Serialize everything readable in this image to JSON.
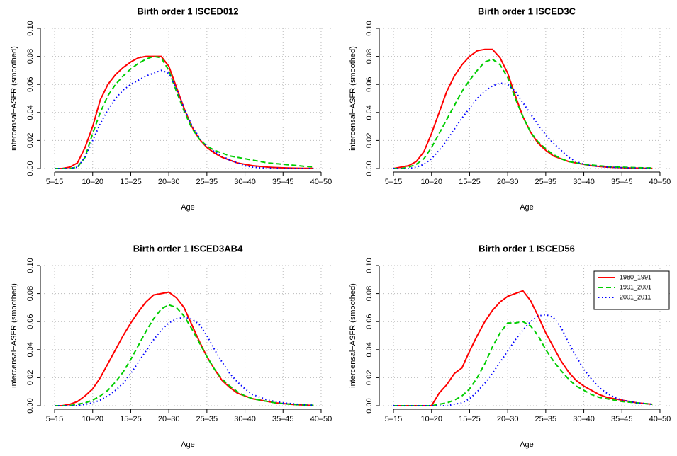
{
  "chart_data": [
    {
      "type": "line",
      "title": "Birth order 1 ISCED012",
      "x_label": "Age",
      "y_label": "intercensal−ASFR (smoothed)",
      "x": [
        1,
        2,
        3,
        4,
        5,
        6,
        7,
        8,
        9,
        10,
        11,
        12,
        13,
        14,
        15,
        16,
        17,
        18,
        19,
        20,
        21,
        22,
        23,
        24,
        25,
        26,
        27,
        28,
        29,
        30,
        31,
        32,
        33,
        34,
        35
      ],
      "series": [
        {
          "color": "#ff0000",
          "dash": "solid",
          "values": [
            0,
            0,
            0.001,
            0.004,
            0.015,
            0.03,
            0.049,
            0.06,
            0.067,
            0.072,
            0.076,
            0.079,
            0.08,
            0.08,
            0.08,
            0.073,
            0.058,
            0.043,
            0.03,
            0.021,
            0.015,
            0.011,
            0.008,
            0.006,
            0.004,
            0.003,
            0.002,
            0.0015,
            0.001,
            0.0007,
            0.0005,
            0.0003,
            0.0002,
            0.0001,
            0.0001
          ]
        },
        {
          "color": "#00cd00",
          "dash": "dashed",
          "values": [
            0,
            0,
            0,
            0.001,
            0.008,
            0.025,
            0.04,
            0.052,
            0.06,
            0.066,
            0.071,
            0.075,
            0.078,
            0.08,
            0.079,
            0.07,
            0.055,
            0.041,
            0.029,
            0.021,
            0.016,
            0.013,
            0.011,
            0.009,
            0.008,
            0.007,
            0.006,
            0.005,
            0.004,
            0.0035,
            0.003,
            0.0025,
            0.002,
            0.0015,
            0.0012
          ]
        },
        {
          "color": "#0000ff",
          "dash": "dotted",
          "values": [
            0,
            0,
            0,
            0.001,
            0.008,
            0.02,
            0.032,
            0.042,
            0.05,
            0.056,
            0.06,
            0.063,
            0.066,
            0.068,
            0.07,
            0.068,
            0.057,
            0.043,
            0.031,
            0.022,
            0.016,
            0.012,
            0.009,
            0.006,
            0.004,
            0.002,
            0.001,
            0.0005,
            0.0003,
            0.0002,
            0.0001,
            0,
            0,
            0,
            0
          ]
        }
      ],
      "xlim": [
        -0.4,
        37.4
      ],
      "ylim": [
        0,
        0.1
      ],
      "xticks": [
        {
          "value": 1,
          "label": "5–15"
        },
        {
          "value": 6,
          "label": "10–20"
        },
        {
          "value": 11,
          "label": "15–25"
        },
        {
          "value": 16,
          "label": "20–30"
        },
        {
          "value": 21,
          "label": "25–35"
        },
        {
          "value": 26,
          "label": "30–40"
        },
        {
          "value": 31,
          "label": "35–45"
        },
        {
          "value": 36,
          "label": "40–50"
        }
      ],
      "yticks": [
        {
          "value": 0,
          "label": "0.00"
        },
        {
          "value": 0.02,
          "label": "0.02"
        },
        {
          "value": 0.04,
          "label": "0.04"
        },
        {
          "value": 0.06,
          "label": "0.06"
        },
        {
          "value": 0.08,
          "label": "0.08"
        },
        {
          "value": 0.1,
          "label": "0.10"
        }
      ],
      "grid": true
    },
    {
      "type": "line",
      "title": "Birth order 1 ISCED3C",
      "x_label": "Age",
      "y_label": "intercensal−ASFR (smoothed)",
      "x": [
        1,
        2,
        3,
        4,
        5,
        6,
        7,
        8,
        9,
        10,
        11,
        12,
        13,
        14,
        15,
        16,
        17,
        18,
        19,
        20,
        21,
        22,
        23,
        24,
        25,
        26,
        27,
        28,
        29,
        30,
        31,
        32,
        33,
        34,
        35
      ],
      "series": [
        {
          "color": "#ff0000",
          "dash": "solid",
          "values": [
            0,
            0.001,
            0.002,
            0.005,
            0.012,
            0.025,
            0.04,
            0.055,
            0.066,
            0.074,
            0.08,
            0.084,
            0.085,
            0.085,
            0.079,
            0.068,
            0.052,
            0.037,
            0.026,
            0.018,
            0.013,
            0.009,
            0.007,
            0.005,
            0.004,
            0.003,
            0.002,
            0.0015,
            0.001,
            0.0008,
            0.0006,
            0.0004,
            0.0003,
            0.0002,
            0.0001
          ]
        },
        {
          "color": "#00cd00",
          "dash": "dashed",
          "values": [
            0,
            0,
            0.001,
            0.003,
            0.007,
            0.015,
            0.025,
            0.035,
            0.045,
            0.055,
            0.063,
            0.07,
            0.076,
            0.078,
            0.074,
            0.065,
            0.05,
            0.037,
            0.026,
            0.019,
            0.014,
            0.01,
            0.007,
            0.005,
            0.004,
            0.003,
            0.0025,
            0.002,
            0.0015,
            0.001,
            0.001,
            0.0008,
            0.0006,
            0.0005,
            0.0004
          ]
        },
        {
          "color": "#0000ff",
          "dash": "dotted",
          "values": [
            0,
            0,
            0,
            0.001,
            0.003,
            0.007,
            0.013,
            0.02,
            0.028,
            0.036,
            0.043,
            0.05,
            0.055,
            0.059,
            0.061,
            0.06,
            0.055,
            0.047,
            0.039,
            0.031,
            0.024,
            0.018,
            0.013,
            0.008,
            0.005,
            0.003,
            0.002,
            0.0015,
            0.001,
            0.0008,
            0.0006,
            0.0004,
            0.0003,
            0.0002,
            0.0001
          ]
        }
      ],
      "xlim": [
        -0.4,
        37.4
      ],
      "ylim": [
        0,
        0.1
      ],
      "xticks": [
        {
          "value": 1,
          "label": "5–15"
        },
        {
          "value": 6,
          "label": "10–20"
        },
        {
          "value": 11,
          "label": "15–25"
        },
        {
          "value": 16,
          "label": "20–30"
        },
        {
          "value": 21,
          "label": "25–35"
        },
        {
          "value": 26,
          "label": "30–40"
        },
        {
          "value": 31,
          "label": "35–45"
        },
        {
          "value": 36,
          "label": "40–50"
        }
      ],
      "yticks": [
        {
          "value": 0,
          "label": "0.00"
        },
        {
          "value": 0.02,
          "label": "0.02"
        },
        {
          "value": 0.04,
          "label": "0.04"
        },
        {
          "value": 0.06,
          "label": "0.06"
        },
        {
          "value": 0.08,
          "label": "0.08"
        },
        {
          "value": 0.1,
          "label": "0.10"
        }
      ],
      "grid": true
    },
    {
      "type": "line",
      "title": "Birth order 1 ISCED3AB4",
      "x_label": "Age",
      "y_label": "intercensal−ASFR (smoothed)",
      "x": [
        1,
        2,
        3,
        4,
        5,
        6,
        7,
        8,
        9,
        10,
        11,
        12,
        13,
        14,
        15,
        16,
        17,
        18,
        19,
        20,
        21,
        22,
        23,
        24,
        25,
        26,
        27,
        28,
        29,
        30,
        31,
        32,
        33,
        34,
        35
      ],
      "series": [
        {
          "color": "#ff0000",
          "dash": "solid",
          "values": [
            0,
            0,
            0.001,
            0.003,
            0.007,
            0.012,
            0.02,
            0.03,
            0.04,
            0.05,
            0.059,
            0.067,
            0.074,
            0.079,
            0.08,
            0.081,
            0.077,
            0.07,
            0.058,
            0.046,
            0.035,
            0.026,
            0.018,
            0.013,
            0.009,
            0.007,
            0.005,
            0.004,
            0.003,
            0.002,
            0.0015,
            0.001,
            0.0007,
            0.0004,
            0.0002
          ]
        },
        {
          "color": "#00cd00",
          "dash": "dashed",
          "values": [
            0,
            0,
            0,
            0.001,
            0.002,
            0.004,
            0.007,
            0.011,
            0.017,
            0.024,
            0.033,
            0.043,
            0.053,
            0.062,
            0.069,
            0.072,
            0.07,
            0.064,
            0.055,
            0.045,
            0.035,
            0.026,
            0.019,
            0.014,
            0.01,
            0.007,
            0.005,
            0.004,
            0.003,
            0.002,
            0.0015,
            0.001,
            0.0007,
            0.0005,
            0.0003
          ]
        },
        {
          "color": "#0000ff",
          "dash": "dotted",
          "values": [
            0,
            0,
            0,
            0,
            0.001,
            0.002,
            0.004,
            0.007,
            0.011,
            0.016,
            0.023,
            0.031,
            0.039,
            0.047,
            0.054,
            0.059,
            0.062,
            0.063,
            0.062,
            0.058,
            0.05,
            0.04,
            0.031,
            0.023,
            0.017,
            0.012,
            0.008,
            0.006,
            0.004,
            0.003,
            0.002,
            0.0015,
            0.001,
            0.0006,
            0.0003
          ]
        }
      ],
      "xlim": [
        -0.4,
        37.4
      ],
      "ylim": [
        0,
        0.1
      ],
      "xticks": [
        {
          "value": 1,
          "label": "5–15"
        },
        {
          "value": 6,
          "label": "10–20"
        },
        {
          "value": 11,
          "label": "15–25"
        },
        {
          "value": 16,
          "label": "20–30"
        },
        {
          "value": 21,
          "label": "25–35"
        },
        {
          "value": 26,
          "label": "30–40"
        },
        {
          "value": 31,
          "label": "35–45"
        },
        {
          "value": 36,
          "label": "40–50"
        }
      ],
      "yticks": [
        {
          "value": 0,
          "label": "0.00"
        },
        {
          "value": 0.02,
          "label": "0.02"
        },
        {
          "value": 0.04,
          "label": "0.04"
        },
        {
          "value": 0.06,
          "label": "0.06"
        },
        {
          "value": 0.08,
          "label": "0.08"
        },
        {
          "value": 0.1,
          "label": "0.10"
        }
      ],
      "grid": true
    },
    {
      "type": "line",
      "title": "Birth order 1 ISCED56",
      "x_label": "Age",
      "y_label": "intercensal−ASFR (smoothed)",
      "x": [
        1,
        2,
        3,
        4,
        5,
        6,
        7,
        8,
        9,
        10,
        11,
        12,
        13,
        14,
        15,
        16,
        17,
        18,
        19,
        20,
        21,
        22,
        23,
        24,
        25,
        26,
        27,
        28,
        29,
        30,
        31,
        32,
        33,
        34,
        35
      ],
      "series": [
        {
          "name": "1980_1991",
          "color": "#ff0000",
          "dash": "solid",
          "values": [
            0,
            0,
            0,
            0,
            0,
            0,
            0.009,
            0.015,
            0.023,
            0.027,
            0.039,
            0.05,
            0.06,
            0.068,
            0.074,
            0.078,
            0.08,
            0.082,
            0.075,
            0.064,
            0.052,
            0.042,
            0.032,
            0.024,
            0.018,
            0.014,
            0.011,
            0.008,
            0.006,
            0.005,
            0.004,
            0.003,
            0.002,
            0.0015,
            0.001
          ]
        },
        {
          "name": "1991_2001",
          "color": "#00cd00",
          "dash": "dashed",
          "values": [
            0,
            0,
            0,
            0,
            0,
            0,
            0.001,
            0.002,
            0.004,
            0.007,
            0.012,
            0.02,
            0.03,
            0.042,
            0.052,
            0.059,
            0.059,
            0.06,
            0.057,
            0.05,
            0.04,
            0.032,
            0.025,
            0.019,
            0.014,
            0.011,
            0.008,
            0.006,
            0.005,
            0.004,
            0.003,
            0.0025,
            0.002,
            0.0015,
            0.001
          ]
        },
        {
          "name": "2001_2011",
          "color": "#0000ff",
          "dash": "dotted",
          "values": [
            0,
            0,
            0,
            0,
            0,
            0,
            0,
            0,
            0.001,
            0.002,
            0.005,
            0.01,
            0.016,
            0.023,
            0.031,
            0.039,
            0.047,
            0.054,
            0.06,
            0.064,
            0.065,
            0.063,
            0.056,
            0.045,
            0.035,
            0.026,
            0.019,
            0.013,
            0.009,
            0.006,
            0.004,
            0.003,
            0.002,
            0.0015,
            0.001
          ]
        }
      ],
      "xlim": [
        -0.4,
        37.4
      ],
      "ylim": [
        0,
        0.1
      ],
      "xticks": [
        {
          "value": 1,
          "label": "5–15"
        },
        {
          "value": 6,
          "label": "10–20"
        },
        {
          "value": 11,
          "label": "15–25"
        },
        {
          "value": 16,
          "label": "20–30"
        },
        {
          "value": 21,
          "label": "25–35"
        },
        {
          "value": 26,
          "label": "30–40"
        },
        {
          "value": 31,
          "label": "35–45"
        },
        {
          "value": 36,
          "label": "40–50"
        }
      ],
      "yticks": [
        {
          "value": 0,
          "label": "0.00"
        },
        {
          "value": 0.02,
          "label": "0.02"
        },
        {
          "value": 0.04,
          "label": "0.04"
        },
        {
          "value": 0.06,
          "label": "0.06"
        },
        {
          "value": 0.08,
          "label": "0.08"
        },
        {
          "value": 0.1,
          "label": "0.10"
        }
      ],
      "grid": true,
      "legend": "topright"
    }
  ]
}
